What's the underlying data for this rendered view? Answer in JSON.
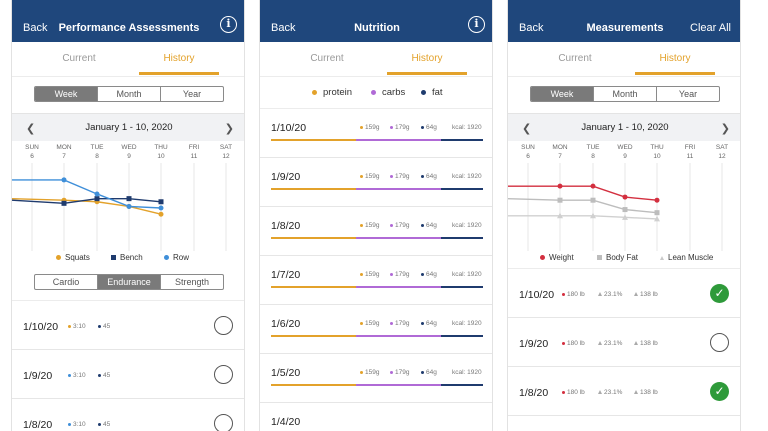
{
  "colors": {
    "header": "#1f477c",
    "accent": "#e3a22b",
    "protein": "#e3a22b",
    "carbs": "#b06ad6",
    "fat": "#1f3b6e",
    "squats": "#e3a22b",
    "bench": "#1f3b6e",
    "row": "#3f8fd9",
    "weight": "#d32f3f",
    "bodyfat": "#bdbdbd",
    "lean": "#d0d0d0",
    "check": "#2e9a3a"
  },
  "days": [
    {
      "name": "SUN",
      "num": "6"
    },
    {
      "name": "MON",
      "num": "7"
    },
    {
      "name": "TUE",
      "num": "8"
    },
    {
      "name": "WED",
      "num": "9"
    },
    {
      "name": "THU",
      "num": "10"
    },
    {
      "name": "FRI",
      "num": "11"
    },
    {
      "name": "SAT",
      "num": "12"
    }
  ],
  "tabs": {
    "current": "Current",
    "history": "History"
  },
  "periods": {
    "week": "Week",
    "month": "Month",
    "year": "Year"
  },
  "performance": {
    "back": "Back",
    "title": "Performance Assessments",
    "info_icon": "info-icon",
    "date_range": "January 1 - 10, 2020",
    "legend": {
      "squats": "Squats",
      "bench": "Bench",
      "row": "Row"
    },
    "categories": {
      "cardio": "Cardio",
      "endurance": "Endurance",
      "strength": "Strength"
    },
    "chart_data": {
      "type": "line",
      "categories": [
        "SUN 6",
        "MON 7",
        "TUE 8",
        "WED 9",
        "THU 10"
      ],
      "series": [
        {
          "name": "Squats",
          "values": [
            0.62,
            0.6,
            0.58,
            0.52,
            0.42
          ]
        },
        {
          "name": "Bench",
          "values": [
            0.6,
            0.56,
            0.62,
            0.62,
            0.58
          ]
        },
        {
          "name": "Row",
          "values": [
            0.86,
            0.86,
            0.68,
            0.52,
            0.5
          ]
        }
      ]
    },
    "rows": [
      {
        "date": "1/10/20",
        "v1": "3:10",
        "v2": "45",
        "marker": "orange"
      },
      {
        "date": "1/9/20",
        "v1": "3:10",
        "v2": "45",
        "marker": "blue"
      },
      {
        "date": "1/8/20",
        "v1": "3:10",
        "v2": "45",
        "marker": "blue"
      }
    ]
  },
  "nutrition": {
    "back": "Back",
    "title": "Nutrition",
    "info_icon": "info-icon",
    "legend": {
      "protein": "protein",
      "carbs": "carbs",
      "fat": "fat"
    },
    "rows": [
      {
        "date": "1/10/20",
        "protein": "159g",
        "carbs": "179g",
        "fat": "64g",
        "kcal": "kcal: 1920"
      },
      {
        "date": "1/9/20",
        "protein": "159g",
        "carbs": "179g",
        "fat": "64g",
        "kcal": "kcal: 1920"
      },
      {
        "date": "1/8/20",
        "protein": "159g",
        "carbs": "179g",
        "fat": "64g",
        "kcal": "kcal: 1920"
      },
      {
        "date": "1/7/20",
        "protein": "159g",
        "carbs": "179g",
        "fat": "64g",
        "kcal": "kcal: 1920"
      },
      {
        "date": "1/6/20",
        "protein": "159g",
        "carbs": "179g",
        "fat": "64g",
        "kcal": "kcal: 1920"
      },
      {
        "date": "1/5/20",
        "protein": "159g",
        "carbs": "179g",
        "fat": "64g",
        "kcal": "kcal: 1920"
      },
      {
        "date": "1/4/20",
        "protein": "",
        "carbs": "",
        "fat": "",
        "kcal": ""
      }
    ],
    "split": {
      "protein": 0.4,
      "carbs": 0.4,
      "fat": 0.2
    }
  },
  "measurements": {
    "back": "Back",
    "title": "Measurements",
    "clear_all": "Clear All",
    "date_range": "January 1 - 10, 2020",
    "legend": {
      "weight": "Weight",
      "bodyfat": "Body Fat",
      "lean": "Lean Muscle"
    },
    "chart_data": {
      "type": "line",
      "categories": [
        "SUN 6",
        "MON 7",
        "TUE 8",
        "WED 9",
        "THU 10"
      ],
      "series": [
        {
          "name": "Weight",
          "values": [
            0.78,
            0.78,
            0.78,
            0.64,
            0.6
          ]
        },
        {
          "name": "Body Fat",
          "values": [
            0.62,
            0.6,
            0.6,
            0.48,
            0.44
          ]
        },
        {
          "name": "Lean Muscle",
          "values": [
            0.4,
            0.4,
            0.4,
            0.38,
            0.36
          ]
        }
      ]
    },
    "rows": [
      {
        "date": "1/10/20",
        "weight": "180 lb",
        "fat": "23.1%",
        "lean": "138 lb",
        "done": true
      },
      {
        "date": "1/9/20",
        "weight": "180 lb",
        "fat": "23.1%",
        "lean": "138 lb",
        "done": false
      },
      {
        "date": "1/8/20",
        "weight": "180 lb",
        "fat": "23.1%",
        "lean": "138 lb",
        "done": true
      }
    ]
  }
}
